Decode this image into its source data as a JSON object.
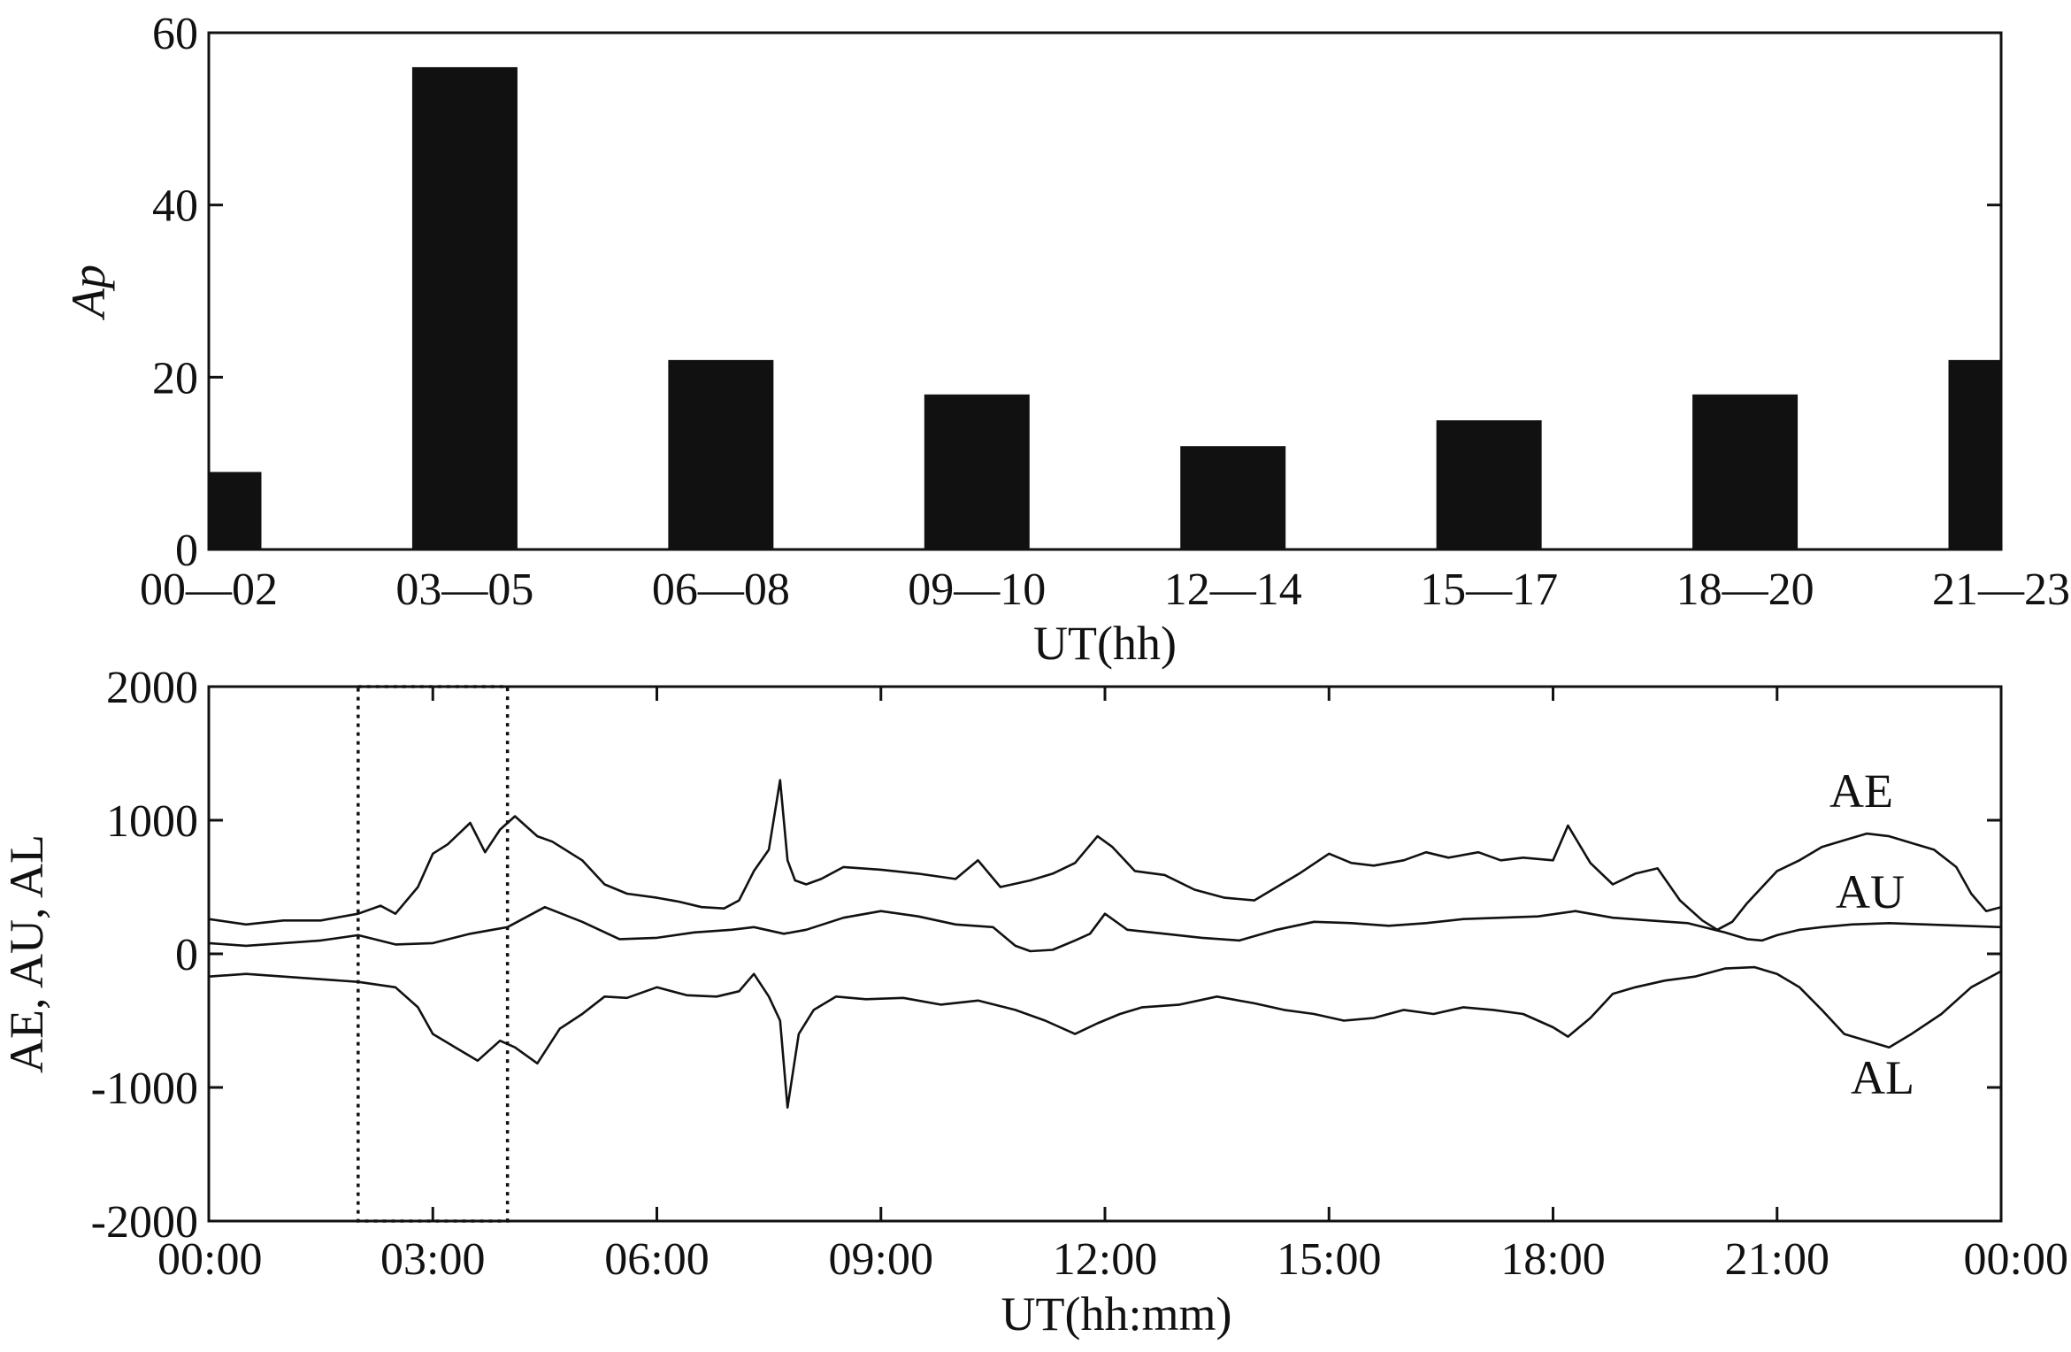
{
  "chart_data": [
    {
      "type": "bar",
      "xlabel": "UT(hh)",
      "ylabel": "Ap",
      "ylim": [
        0,
        60
      ],
      "yticks": [
        "0",
        "20",
        "40",
        "60"
      ],
      "categories": [
        "00—02",
        "03—05",
        "06—08",
        "09—10",
        "12—14",
        "15—17",
        "18—20",
        "21—23"
      ],
      "values": [
        9,
        56,
        22,
        18,
        12,
        15,
        18,
        22
      ],
      "grid": false
    },
    {
      "type": "line",
      "xlabel": "UT(hh:mm)",
      "ylabel": "AE, AU, AL",
      "ylim": [
        -2000,
        2000
      ],
      "yticks": [
        "-2000",
        "-1000",
        "0",
        "1000",
        "2000"
      ],
      "xlim_hours": [
        0,
        24
      ],
      "xticks": [
        "00:00",
        "03:00",
        "06:00",
        "09:00",
        "12:00",
        "15:00",
        "18:00",
        "21:00",
        "00:00"
      ],
      "highlight_box_hours": [
        2,
        4
      ],
      "grid": false,
      "series": [
        {
          "name": "AE",
          "x_hours": [
            0,
            0.5,
            1,
            1.5,
            2,
            2.3,
            2.5,
            2.8,
            3,
            3.2,
            3.5,
            3.7,
            3.9,
            4.1,
            4.4,
            4.6,
            5,
            5.3,
            5.6,
            6,
            6.3,
            6.6,
            6.9,
            7.1,
            7.3,
            7.5,
            7.65,
            7.75,
            7.85,
            8,
            8.2,
            8.5,
            9,
            9.5,
            10,
            10.3,
            10.6,
            11,
            11.3,
            11.6,
            11.9,
            12.1,
            12.4,
            12.8,
            13.2,
            13.6,
            14,
            14.3,
            14.6,
            15,
            15.3,
            15.6,
            16,
            16.3,
            16.6,
            17,
            17.3,
            17.6,
            18,
            18.2,
            18.5,
            18.8,
            19.1,
            19.4,
            19.7,
            20,
            20.2,
            20.4,
            20.6,
            20.8,
            21,
            21.3,
            21.6,
            21.9,
            22.2,
            22.5,
            22.8,
            23.1,
            23.4,
            23.6,
            23.8,
            24
          ],
          "values": [
            260,
            220,
            250,
            250,
            300,
            360,
            300,
            500,
            750,
            820,
            980,
            760,
            930,
            1030,
            880,
            840,
            700,
            520,
            450,
            420,
            390,
            350,
            340,
            400,
            620,
            780,
            1300,
            700,
            550,
            520,
            560,
            650,
            630,
            600,
            560,
            700,
            500,
            550,
            600,
            680,
            880,
            800,
            620,
            590,
            480,
            420,
            400,
            500,
            600,
            750,
            680,
            660,
            700,
            760,
            720,
            760,
            700,
            720,
            700,
            960,
            680,
            520,
            600,
            640,
            400,
            250,
            180,
            240,
            380,
            500,
            620,
            700,
            800,
            850,
            900,
            880,
            830,
            780,
            650,
            450,
            320,
            350
          ]
        },
        {
          "name": "AU",
          "x_hours": [
            0,
            0.5,
            1,
            1.5,
            2,
            2.5,
            3,
            3.5,
            4,
            4.5,
            5,
            5.5,
            6,
            6.5,
            7,
            7.3,
            7.7,
            8,
            8.5,
            9,
            9.5,
            10,
            10.5,
            10.8,
            11,
            11.3,
            11.6,
            11.8,
            12,
            12.3,
            12.8,
            13.3,
            13.8,
            14.3,
            14.8,
            15.3,
            15.8,
            16.3,
            16.8,
            17.3,
            17.8,
            18.3,
            18.8,
            19.3,
            19.8,
            20.3,
            20.6,
            20.8,
            21,
            21.3,
            21.6,
            22,
            22.5,
            23,
            23.5,
            24
          ],
          "values": [
            80,
            60,
            80,
            100,
            140,
            70,
            80,
            150,
            200,
            350,
            240,
            110,
            120,
            160,
            180,
            200,
            150,
            180,
            270,
            320,
            280,
            220,
            200,
            60,
            20,
            30,
            100,
            150,
            300,
            180,
            150,
            120,
            100,
            180,
            240,
            230,
            210,
            230,
            260,
            270,
            280,
            320,
            270,
            250,
            230,
            160,
            110,
            100,
            140,
            180,
            200,
            220,
            230,
            220,
            210,
            200
          ]
        },
        {
          "name": "AL",
          "x_hours": [
            0,
            0.5,
            1,
            1.5,
            2,
            2.5,
            2.8,
            3,
            3.3,
            3.6,
            3.9,
            4.1,
            4.4,
            4.7,
            5,
            5.3,
            5.6,
            6,
            6.4,
            6.8,
            7.1,
            7.3,
            7.5,
            7.65,
            7.75,
            7.9,
            8.1,
            8.4,
            8.8,
            9.3,
            9.8,
            10.3,
            10.8,
            11.2,
            11.6,
            11.9,
            12.2,
            12.5,
            13,
            13.5,
            14,
            14.4,
            14.8,
            15.2,
            15.6,
            16,
            16.4,
            16.8,
            17.2,
            17.6,
            18,
            18.2,
            18.5,
            18.8,
            19.1,
            19.5,
            19.9,
            20.3,
            20.7,
            21,
            21.3,
            21.6,
            21.9,
            22.2,
            22.5,
            22.8,
            23.2,
            23.6,
            24
          ],
          "values": [
            -170,
            -150,
            -170,
            -190,
            -210,
            -250,
            -400,
            -600,
            -700,
            -800,
            -650,
            -700,
            -820,
            -560,
            -450,
            -320,
            -330,
            -250,
            -310,
            -320,
            -280,
            -150,
            -320,
            -500,
            -1150,
            -600,
            -420,
            -320,
            -340,
            -330,
            -380,
            -350,
            -420,
            -500,
            -600,
            -520,
            -450,
            -400,
            -380,
            -320,
            -370,
            -420,
            -450,
            -500,
            -480,
            -420,
            -450,
            -400,
            -420,
            -450,
            -550,
            -620,
            -480,
            -300,
            -250,
            -200,
            -170,
            -110,
            -100,
            -150,
            -250,
            -420,
            -600,
            -650,
            -700,
            -600,
            -450,
            -250,
            -130
          ]
        }
      ]
    }
  ]
}
